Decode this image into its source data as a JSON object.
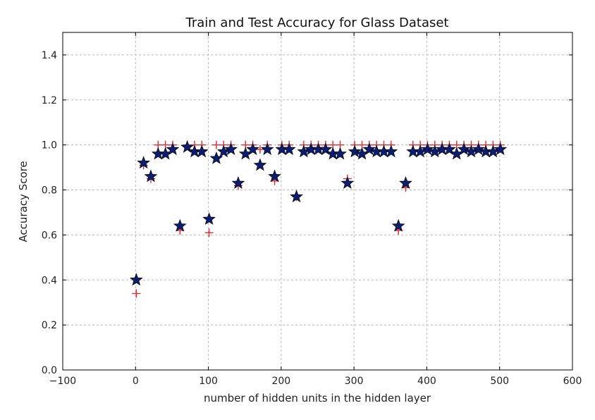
{
  "chart_data": {
    "type": "scatter",
    "title": "Train and Test Accuracy for Glass Dataset",
    "xlabel": "number of hidden units in the hidden layer",
    "ylabel": "Accuracy Score",
    "xlim": [
      -100,
      600
    ],
    "ylim": [
      0.0,
      1.5
    ],
    "xticks": [
      -100,
      0,
      100,
      200,
      300,
      400,
      500,
      600
    ],
    "xtick_labels": [
      "−100",
      "0",
      "100",
      "200",
      "300",
      "400",
      "500",
      "600"
    ],
    "yticks": [
      0.0,
      0.2,
      0.4,
      0.6,
      0.8,
      1.0,
      1.2,
      1.4
    ],
    "ytick_labels": [
      "0.0",
      "0.2",
      "0.4",
      "0.6",
      "0.8",
      "1.0",
      "1.2",
      "1.4"
    ],
    "grid": true,
    "legend": "none",
    "series": [
      {
        "marker": "plus",
        "color": "#e8282a",
        "x": [
          1,
          11,
          21,
          31,
          41,
          51,
          61,
          71,
          81,
          91,
          101,
          111,
          121,
          131,
          141,
          151,
          161,
          171,
          181,
          191,
          201,
          211,
          221,
          231,
          241,
          251,
          261,
          271,
          281,
          291,
          301,
          311,
          321,
          331,
          341,
          351,
          361,
          371,
          381,
          391,
          401,
          411,
          421,
          431,
          441,
          451,
          461,
          471,
          481,
          491,
          501
        ],
        "y": [
          0.34,
          0.91,
          0.85,
          1.0,
          1.0,
          1.0,
          0.62,
          1.0,
          1.0,
          1.0,
          0.61,
          1.0,
          1.0,
          1.0,
          0.82,
          1.0,
          1.0,
          0.98,
          1.0,
          0.84,
          1.0,
          1.0,
          0.77,
          1.0,
          1.0,
          1.0,
          1.0,
          1.0,
          1.0,
          0.85,
          1.0,
          1.0,
          1.0,
          1.0,
          1.0,
          1.0,
          0.62,
          0.81,
          1.0,
          1.0,
          1.0,
          1.0,
          1.0,
          1.0,
          1.0,
          1.0,
          1.0,
          1.0,
          1.0,
          1.0,
          1.0
        ]
      },
      {
        "marker": "star",
        "color": "#0c1c6e",
        "x": [
          1,
          11,
          21,
          31,
          41,
          51,
          61,
          71,
          81,
          91,
          101,
          111,
          121,
          131,
          141,
          151,
          161,
          171,
          181,
          191,
          201,
          211,
          221,
          231,
          241,
          251,
          261,
          271,
          281,
          291,
          301,
          311,
          321,
          331,
          341,
          351,
          361,
          371,
          381,
          391,
          401,
          411,
          421,
          431,
          441,
          451,
          461,
          471,
          481,
          491,
          501
        ],
        "y": [
          0.4,
          0.92,
          0.86,
          0.96,
          0.96,
          0.98,
          0.64,
          0.99,
          0.97,
          0.97,
          0.67,
          0.94,
          0.97,
          0.98,
          0.83,
          0.96,
          0.98,
          0.91,
          0.98,
          0.86,
          0.98,
          0.98,
          0.77,
          0.97,
          0.98,
          0.98,
          0.98,
          0.96,
          0.96,
          0.83,
          0.97,
          0.96,
          0.98,
          0.97,
          0.97,
          0.97,
          0.64,
          0.83,
          0.97,
          0.97,
          0.98,
          0.97,
          0.98,
          0.98,
          0.96,
          0.98,
          0.97,
          0.98,
          0.97,
          0.97,
          0.98
        ]
      }
    ]
  }
}
